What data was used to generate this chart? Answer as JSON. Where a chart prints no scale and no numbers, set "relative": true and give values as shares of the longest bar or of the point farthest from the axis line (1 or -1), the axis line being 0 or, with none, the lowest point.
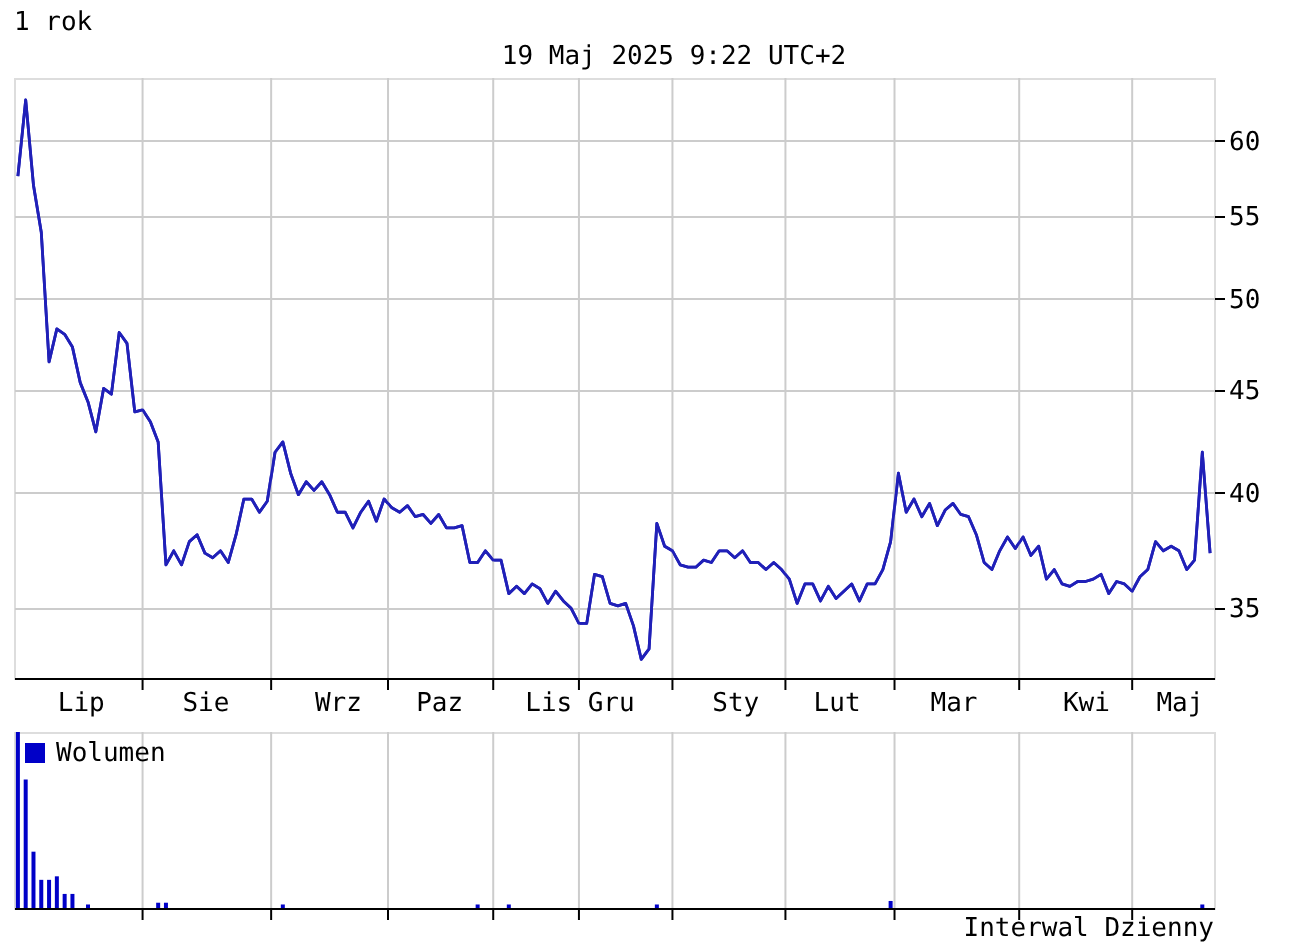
{
  "chart_data": [
    {
      "type": "line",
      "title": "1 rok",
      "annotations": [
        "19 Maj 2025 9:22 UTC+2"
      ],
      "log": true,
      "grid": true,
      "ylim": [
        32.3,
        64.5
      ],
      "yticks": [
        35,
        40,
        45,
        50,
        55,
        60
      ],
      "categories": [
        null,
        null,
        null,
        null,
        null,
        null,
        null,
        null,
        "Lip",
        null,
        null,
        null,
        null,
        null,
        null,
        null,
        null,
        null,
        null,
        null,
        null,
        null,
        null,
        null,
        "Sie",
        null,
        null,
        null,
        null,
        null,
        null,
        null,
        null,
        null,
        null,
        null,
        null,
        null,
        null,
        null,
        null,
        "Wrz",
        null,
        null,
        null,
        null,
        null,
        null,
        null,
        null,
        null,
        null,
        null,
        null,
        "Paz",
        null,
        null,
        null,
        null,
        null,
        null,
        null,
        null,
        null,
        null,
        null,
        null,
        null,
        "Lis",
        null,
        null,
        null,
        null,
        null,
        null,
        null,
        "Gru",
        null,
        null,
        null,
        null,
        null,
        null,
        null,
        null,
        null,
        null,
        null,
        null,
        null,
        null,
        null,
        "Sty",
        null,
        null,
        null,
        null,
        null,
        null,
        null,
        null,
        null,
        null,
        null,
        null,
        "Lut",
        null,
        null,
        null,
        null,
        null,
        null,
        null,
        null,
        null,
        null,
        null,
        null,
        null,
        null,
        "Mar",
        null,
        null,
        null,
        null,
        null,
        null,
        null,
        null,
        null,
        null,
        null,
        null,
        null,
        null,
        null,
        null,
        "Kwi",
        null,
        null,
        null,
        null,
        null,
        null,
        null,
        null,
        null,
        null,
        null,
        "Maj",
        null,
        null,
        null,
        null
      ],
      "series": [
        {
          "color": "#2020b8",
          "values": [
            57.6,
            62.9,
            57.0,
            54.0,
            46.5,
            48.3,
            48.0,
            47.3,
            45.4,
            44.4,
            42.9,
            45.1,
            44.8,
            48.1,
            47.5,
            43.9,
            44.0,
            43.4,
            42.4,
            36.8,
            37.4,
            36.8,
            37.8,
            38.1,
            37.3,
            37.1,
            37.4,
            36.9,
            38.1,
            39.7,
            39.7,
            39.1,
            39.6,
            41.9,
            42.4,
            40.9,
            39.9,
            40.5,
            40.1,
            40.5,
            39.9,
            39.1,
            39.1,
            38.4,
            39.1,
            39.6,
            38.7,
            39.7,
            39.3,
            39.1,
            39.4,
            38.9,
            39.0,
            38.6,
            39.0,
            38.4,
            38.4,
            38.5,
            36.9,
            36.9,
            37.4,
            37.0,
            37.0,
            35.6,
            35.9,
            35.6,
            36.0,
            35.8,
            35.2,
            35.7,
            35.3,
            35.0,
            34.4,
            34.4,
            36.4,
            36.3,
            35.2,
            35.1,
            35.2,
            34.3,
            33.0,
            33.4,
            38.6,
            37.6,
            37.4,
            36.8,
            36.7,
            36.7,
            37.0,
            36.9,
            37.4,
            37.4,
            37.1,
            37.4,
            36.9,
            36.9,
            36.6,
            36.9,
            36.6,
            36.2,
            35.2,
            36.0,
            36.0,
            35.3,
            35.9,
            35.4,
            35.7,
            36.0,
            35.3,
            36.0,
            36.0,
            36.6,
            37.8,
            40.9,
            39.1,
            39.7,
            38.9,
            39.5,
            38.5,
            39.2,
            39.5,
            39.0,
            38.9,
            38.1,
            36.9,
            36.6,
            37.4,
            38.0,
            37.5,
            38.0,
            37.2,
            37.6,
            36.2,
            36.6,
            36.0,
            35.9,
            36.1,
            36.1,
            36.2,
            36.4,
            35.6,
            36.1,
            36.0,
            35.7,
            36.3,
            36.6,
            37.8,
            37.4,
            37.6,
            37.4,
            36.6,
            37.0,
            41.9,
            37.3
          ]
        }
      ]
    },
    {
      "type": "bar",
      "relative": true,
      "legend": "top left",
      "grid": "x",
      "annotations": [
        "Interwal Dzienny"
      ],
      "categories": [
        null,
        null,
        null,
        null,
        null,
        null,
        null,
        null,
        null,
        null,
        null,
        null,
        null,
        null,
        null,
        null,
        null,
        null,
        null,
        null,
        null,
        null,
        null,
        null,
        null,
        null,
        null,
        null,
        null,
        null,
        null,
        null,
        null,
        null,
        null,
        null,
        null,
        null,
        null,
        null,
        null,
        null,
        null,
        null,
        null,
        null,
        null,
        null,
        null,
        null,
        null,
        null,
        null,
        null,
        null,
        null,
        null,
        null,
        null,
        null,
        null,
        null,
        null,
        null,
        null,
        null,
        null,
        null,
        null,
        null,
        null,
        null,
        null,
        null,
        null,
        null,
        null,
        null,
        null,
        null,
        null,
        null,
        null,
        null,
        null,
        null,
        null,
        null,
        null,
        null,
        null,
        null,
        null,
        null,
        null,
        null,
        null,
        null,
        null,
        null,
        null,
        null,
        null,
        null,
        null,
        null,
        null,
        null,
        null,
        null,
        null,
        null,
        null,
        null,
        null,
        null,
        null,
        null,
        null,
        null,
        null,
        null,
        null,
        null,
        null,
        null,
        null,
        null,
        null,
        null,
        null,
        null,
        null,
        null,
        null,
        null,
        null,
        null,
        null,
        null,
        null,
        null,
        null,
        null,
        null,
        null,
        null,
        null,
        null,
        null,
        null,
        null,
        null,
        null
      ],
      "series": [
        {
          "name": "Wolumen",
          "color": "#0000c8",
          "values": [
            1.0,
            0.73,
            0.32,
            0.16,
            0.16,
            0.18,
            0.08,
            0.08,
            null,
            0.02,
            null,
            null,
            null,
            null,
            null,
            null,
            null,
            null,
            0.03,
            0.03,
            null,
            null,
            null,
            null,
            null,
            null,
            null,
            null,
            null,
            null,
            null,
            null,
            null,
            null,
            0.02,
            null,
            null,
            null,
            null,
            null,
            null,
            null,
            null,
            null,
            null,
            null,
            null,
            null,
            null,
            null,
            null,
            null,
            null,
            null,
            null,
            null,
            null,
            null,
            null,
            0.02,
            null,
            null,
            null,
            0.02,
            null,
            null,
            null,
            null,
            null,
            null,
            null,
            null,
            null,
            null,
            null,
            null,
            null,
            null,
            null,
            null,
            null,
            null,
            0.02,
            null,
            null,
            null,
            null,
            null,
            null,
            null,
            null,
            null,
            null,
            null,
            null,
            null,
            null,
            null,
            null,
            null,
            null,
            null,
            null,
            null,
            null,
            null,
            null,
            null,
            null,
            null,
            null,
            null,
            0.04,
            null,
            null,
            null,
            null,
            null,
            null,
            null,
            null,
            null,
            null,
            null,
            null,
            null,
            null,
            null,
            null,
            null,
            null,
            null,
            null,
            null,
            null,
            null,
            null,
            null,
            null,
            null,
            null,
            null,
            null,
            null,
            null,
            null,
            null,
            null,
            null,
            null,
            null,
            null,
            0.02,
            null
          ]
        }
      ]
    }
  ]
}
